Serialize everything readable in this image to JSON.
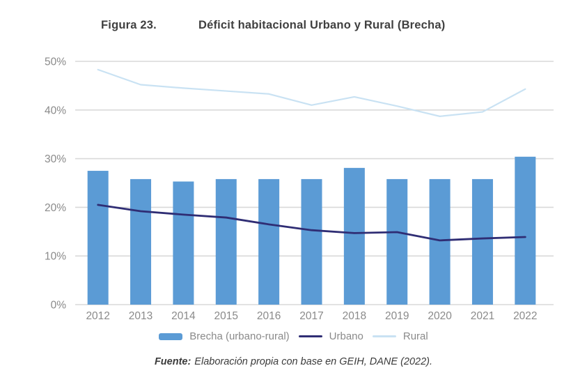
{
  "title": {
    "figure_label": "Figura 23.",
    "text": "Déficit habitacional Urbano y Rural (Brecha)"
  },
  "chart_data": {
    "type": "combo-bar-line",
    "categories": [
      "2012",
      "2013",
      "2014",
      "2015",
      "2016",
      "2017",
      "2018",
      "2019",
      "2020",
      "2021",
      "2022"
    ],
    "bar_series": {
      "name": "Brecha (urbano-rural)",
      "values": [
        27.5,
        25.8,
        25.3,
        25.8,
        25.8,
        25.8,
        28.1,
        25.8,
        25.8,
        25.8,
        30.4
      ]
    },
    "line_series": [
      {
        "name": "Urbano",
        "values": [
          20.5,
          19.2,
          18.5,
          17.9,
          16.5,
          15.3,
          14.7,
          14.9,
          13.2,
          13.6,
          13.9
        ]
      },
      {
        "name": "Rural",
        "values": [
          48.3,
          45.2,
          44.5,
          43.9,
          43.3,
          41.0,
          42.7,
          40.8,
          38.7,
          39.6,
          44.3
        ]
      }
    ],
    "ylim": [
      0,
      50
    ],
    "ytick_step": 10,
    "ytick_labels": [
      "0%",
      "10%",
      "20%",
      "30%",
      "40%",
      "50%"
    ],
    "grid": true,
    "legend_position": "bottom"
  },
  "legend": {
    "items": [
      {
        "label": "Brecha (urbano-rural)",
        "type": "bar"
      },
      {
        "label": "Urbano",
        "type": "line"
      },
      {
        "label": "Rural",
        "type": "line"
      }
    ]
  },
  "footer": {
    "source_label": "Fuente:",
    "text": "Elaboración propia con base en GEIH, DANE (2022)."
  },
  "colors": {
    "bar": "#5B9BD5",
    "urbano": "#2F2D74",
    "rural": "#C9E2F3",
    "grid": "#D9D9D9",
    "axis_text": "#8A8A8A",
    "title_text": "#404040",
    "legend_text": "#8A8A8A",
    "footer_text": "#3B3B3B"
  }
}
